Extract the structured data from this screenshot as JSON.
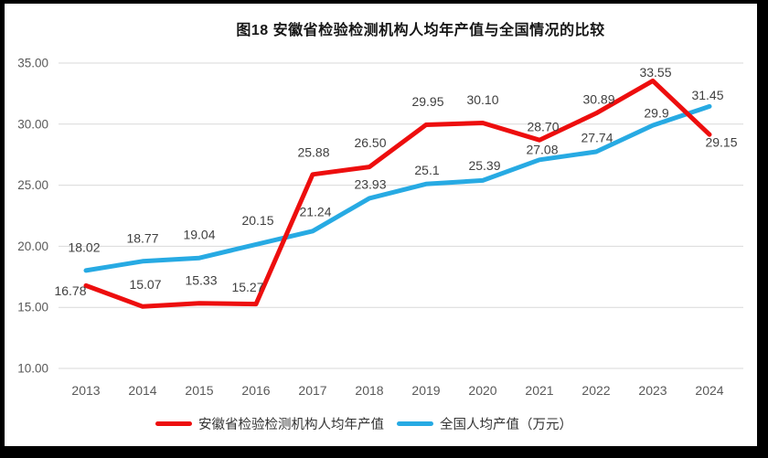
{
  "title": "图18 安徽省检验检测机构人均年产值与全国情况的比较",
  "chart_data": {
    "type": "line",
    "title": "图18 安徽省检验检测机构人均年产值与全国情况的比较",
    "categories": [
      "2013",
      "2014",
      "2015",
      "2016",
      "2017",
      "2018",
      "2019",
      "2020",
      "2021",
      "2022",
      "2023",
      "2024"
    ],
    "series": [
      {
        "name": "安徽省检验检测机构人均年产值",
        "color": "#ED0E0E",
        "values": [
          16.78,
          15.07,
          15.33,
          15.27,
          25.88,
          26.5,
          29.95,
          30.1,
          28.7,
          30.89,
          33.55,
          29.15
        ],
        "point_labels": [
          "16.78",
          "15.07",
          "15.33",
          "15.27",
          "25.88",
          "26.50",
          "29.95",
          "30.10",
          "28.70",
          "30.89",
          "33.55",
          "29.15"
        ]
      },
      {
        "name": "全国人均产值（万元）",
        "color": "#27AAE3",
        "values": [
          18.02,
          18.77,
          19.04,
          20.15,
          21.24,
          23.93,
          25.1,
          25.39,
          27.08,
          27.74,
          29.9,
          31.45
        ],
        "point_labels": [
          "18.02",
          "18.77",
          "19.04",
          "20.15",
          "21.24",
          "23.93",
          "25.1",
          "25.39",
          "27.08",
          "27.74",
          "29.9",
          "31.45"
        ]
      }
    ],
    "ylim": [
      10,
      35
    ],
    "y_ticks": [
      "35.00",
      "30.00",
      "25.00",
      "20.00",
      "15.00",
      "10.00"
    ],
    "xlabel": "",
    "ylabel": "",
    "grid": true,
    "legend_position": "bottom"
  },
  "colors": {
    "grid": "#D9D9D9",
    "axis_text": "#595959",
    "data_label_text": "#3F3F3F",
    "frame": "#000000",
    "background": "#FFFFFF",
    "series_red": "#ED0E0E",
    "series_blue": "#27AAE3"
  }
}
